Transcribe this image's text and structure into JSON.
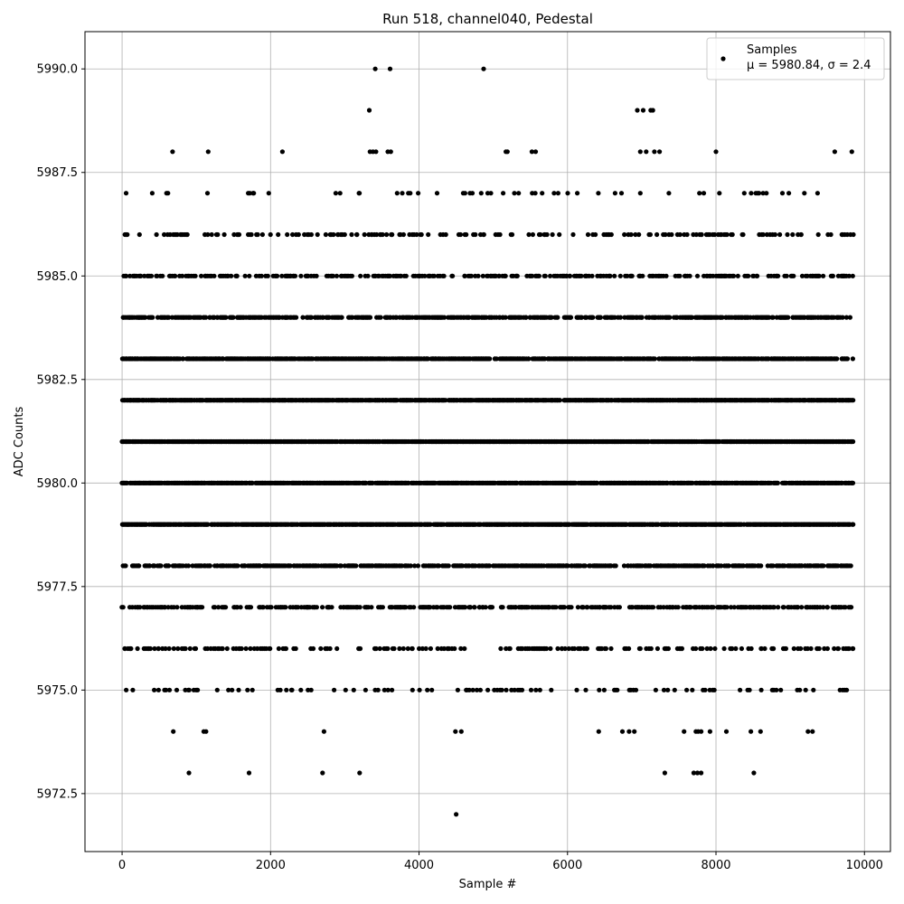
{
  "chart_data": {
    "type": "scatter",
    "title": "Run 518, channel040, Pedestal",
    "xlabel": "Sample #",
    "ylabel": "ADC Counts",
    "xlim": [
      -500,
      10350
    ],
    "ylim": [
      5971.1,
      5990.9
    ],
    "grid": true,
    "legend_position": "top-right",
    "x_ticks": [
      0,
      2000,
      4000,
      6000,
      8000,
      10000
    ],
    "y_ticks": [
      5972.5,
      5975.0,
      5977.5,
      5980.0,
      5982.5,
      5985.0,
      5987.5,
      5990.0
    ],
    "x_tick_labels": [
      "0",
      "2000",
      "4000",
      "6000",
      "8000",
      "10000"
    ],
    "y_tick_labels": [
      "5972.5",
      "5975.0",
      "5977.5",
      "5980.0",
      "5982.5",
      "5985.0",
      "5987.5",
      "5990.0"
    ],
    "series": [
      {
        "name": "Samples",
        "color": "#000000",
        "marker": "circle",
        "x_range": [
          0,
          9850
        ],
        "n_samples": 9850,
        "level_density": {
          "5985": 0.35,
          "5984": 0.55,
          "5983": 0.75,
          "5982": 0.85,
          "5981": 0.9,
          "5980": 0.85,
          "5979": 0.8,
          "5978": 0.55,
          "5977": 0.4,
          "5976": 0.22,
          "5975": 0.1,
          "5986": 0.16,
          "5987": 0.06
        },
        "rare_points": [
          {
            "x": 3410,
            "y": 5990
          },
          {
            "x": 3610,
            "y": 5990
          },
          {
            "x": 4870,
            "y": 5990
          },
          {
            "x": 3330,
            "y": 5989
          },
          {
            "x": 6940,
            "y": 5989
          },
          {
            "x": 7020,
            "y": 5989
          },
          {
            "x": 7120,
            "y": 5989
          },
          {
            "x": 7150,
            "y": 5989
          },
          {
            "x": 680,
            "y": 5988
          },
          {
            "x": 1160,
            "y": 5988
          },
          {
            "x": 2160,
            "y": 5988
          },
          {
            "x": 3340,
            "y": 5988
          },
          {
            "x": 3380,
            "y": 5988
          },
          {
            "x": 3420,
            "y": 5988
          },
          {
            "x": 3580,
            "y": 5988
          },
          {
            "x": 3620,
            "y": 5988
          },
          {
            "x": 5170,
            "y": 5988
          },
          {
            "x": 5190,
            "y": 5988
          },
          {
            "x": 5520,
            "y": 5988
          },
          {
            "x": 5570,
            "y": 5988
          },
          {
            "x": 6980,
            "y": 5988
          },
          {
            "x": 7060,
            "y": 5988
          },
          {
            "x": 7170,
            "y": 5988
          },
          {
            "x": 7240,
            "y": 5988
          },
          {
            "x": 8000,
            "y": 5988
          },
          {
            "x": 9600,
            "y": 5988
          },
          {
            "x": 9830,
            "y": 5988
          },
          {
            "x": 690,
            "y": 5974
          },
          {
            "x": 1100,
            "y": 5974
          },
          {
            "x": 1130,
            "y": 5974
          },
          {
            "x": 2720,
            "y": 5974
          },
          {
            "x": 4490,
            "y": 5974
          },
          {
            "x": 4570,
            "y": 5974
          },
          {
            "x": 6420,
            "y": 5974
          },
          {
            "x": 6740,
            "y": 5974
          },
          {
            "x": 6830,
            "y": 5974
          },
          {
            "x": 6900,
            "y": 5974
          },
          {
            "x": 7570,
            "y": 5974
          },
          {
            "x": 7730,
            "y": 5974
          },
          {
            "x": 7760,
            "y": 5974
          },
          {
            "x": 7800,
            "y": 5974
          },
          {
            "x": 7920,
            "y": 5974
          },
          {
            "x": 8140,
            "y": 5974
          },
          {
            "x": 8470,
            "y": 5974
          },
          {
            "x": 8600,
            "y": 5974
          },
          {
            "x": 9240,
            "y": 5974
          },
          {
            "x": 9300,
            "y": 5974
          },
          {
            "x": 900,
            "y": 5973
          },
          {
            "x": 1710,
            "y": 5973
          },
          {
            "x": 2700,
            "y": 5973
          },
          {
            "x": 3200,
            "y": 5973
          },
          {
            "x": 7310,
            "y": 5973
          },
          {
            "x": 7700,
            "y": 5973
          },
          {
            "x": 7750,
            "y": 5973
          },
          {
            "x": 7800,
            "y": 5973
          },
          {
            "x": 8510,
            "y": 5973
          },
          {
            "x": 4500,
            "y": 5972
          }
        ]
      }
    ],
    "legend": {
      "title": "Samples",
      "label": "μ = 5980.84, σ = 2.4"
    }
  }
}
